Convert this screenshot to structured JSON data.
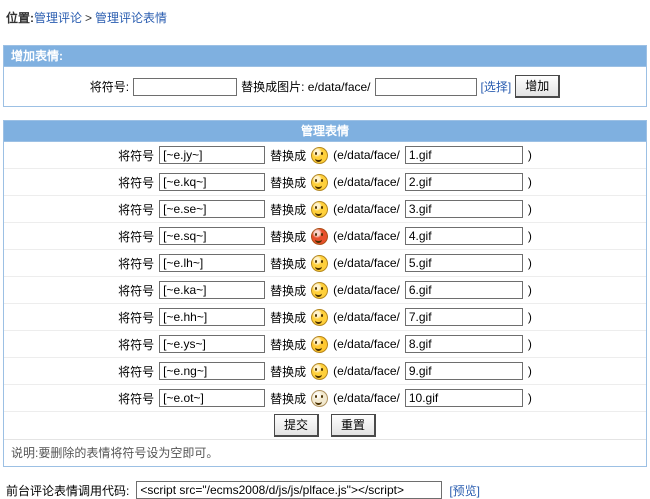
{
  "breadcrumb": {
    "prefix": "位置:",
    "link_comments": "管理评论",
    "separator": ">",
    "link_faces": "管理评论表情"
  },
  "add_panel": {
    "title": "增加表情:",
    "symbol_label": "将符号:",
    "symbol_value": "",
    "replace_label": "替换成图片: e/data/face/",
    "file_value": "",
    "choose_link": "[选择]",
    "add_button": "增加"
  },
  "manage_panel": {
    "title": "管理表情",
    "row_labels": {
      "symbol": "将符号",
      "replace": "替换成",
      "path_open": "(e/data/face/",
      "path_close": ")"
    },
    "rows": [
      {
        "symbol": "[~e.jy~]",
        "file": "1.gif",
        "icon": "surprised-face",
        "color": "#FFD03B"
      },
      {
        "symbol": "[~e.kq~]",
        "file": "2.gif",
        "icon": "crying-face",
        "color": "#FFD03B"
      },
      {
        "symbol": "[~e.se~]",
        "file": "3.gif",
        "icon": "love-face",
        "color": "#FFD03B"
      },
      {
        "symbol": "[~e.sq~]",
        "file": "4.gif",
        "icon": "angry-face",
        "color": "#E8502C"
      },
      {
        "symbol": "[~e.lh~]",
        "file": "5.gif",
        "icon": "sweat-face",
        "color": "#FFD03B"
      },
      {
        "symbol": "[~e.ka~]",
        "file": "6.gif",
        "icon": "tongue-face",
        "color": "#FFD03B"
      },
      {
        "symbol": "[~e.hh~]",
        "file": "7.gif",
        "icon": "grin-face",
        "color": "#FFD03B"
      },
      {
        "symbol": "[~e.ys~]",
        "file": "8.gif",
        "icon": "wink-face",
        "color": "#FFC832"
      },
      {
        "symbol": "[~e.ng~]",
        "file": "9.gif",
        "icon": "sad-face",
        "color": "#FFD03B"
      },
      {
        "symbol": "[~e.ot~]",
        "file": "10.gif",
        "icon": "pale-face",
        "color": "#F2E9CF"
      }
    ],
    "submit_button": "提交",
    "reset_button": "重置",
    "note": "说明:要删除的表情将符号设为空即可。"
  },
  "footer": {
    "label": "前台评论表情调用代码:",
    "code_value": "<script src=\"/ecms2008/d/js/js/plface.js\"></script>",
    "preview_link": "[预览]"
  },
  "colors": {
    "header_bg": "#7FB0E0",
    "panel_border": "#9CC0E4",
    "link": "#2A5DB0",
    "row_separator": "#EDEDED"
  }
}
